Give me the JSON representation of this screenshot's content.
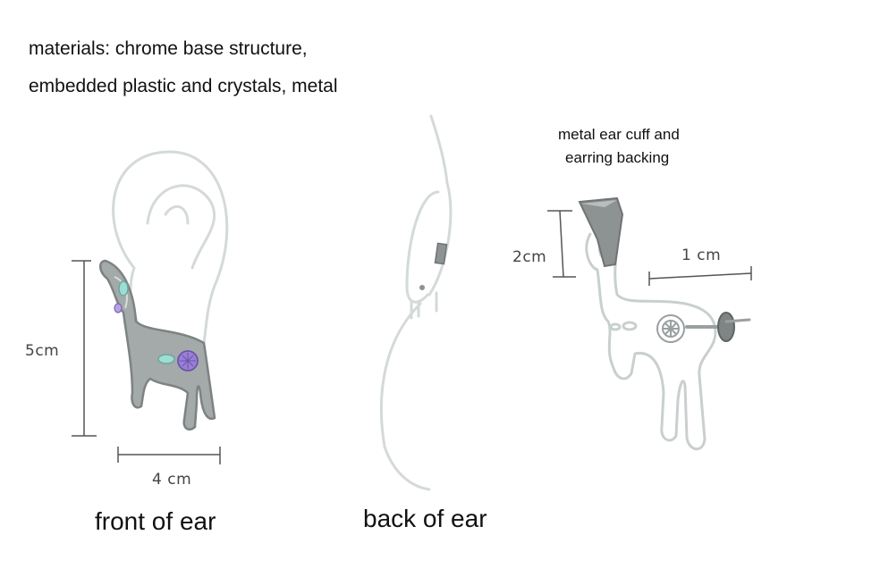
{
  "materials": {
    "line1": "materials: chrome base structure,",
    "line2": "embedded plastic and crystals, metal"
  },
  "captions": {
    "front": "front of ear",
    "back": "back of ear",
    "cuff": "metal ear cuff and",
    "cuff2": "earring backing"
  },
  "dimensions": {
    "height": "5cm",
    "width": "4 cm",
    "cuff_height": "2cm",
    "post_length": "1 cm"
  },
  "colors": {
    "sketch_line": "#c9cfcf",
    "chrome": "#8f9596",
    "crystal_teal": "#9fdcd2",
    "crystal_purple": "#9a7fd6",
    "metal_dark": "#6f7373"
  }
}
